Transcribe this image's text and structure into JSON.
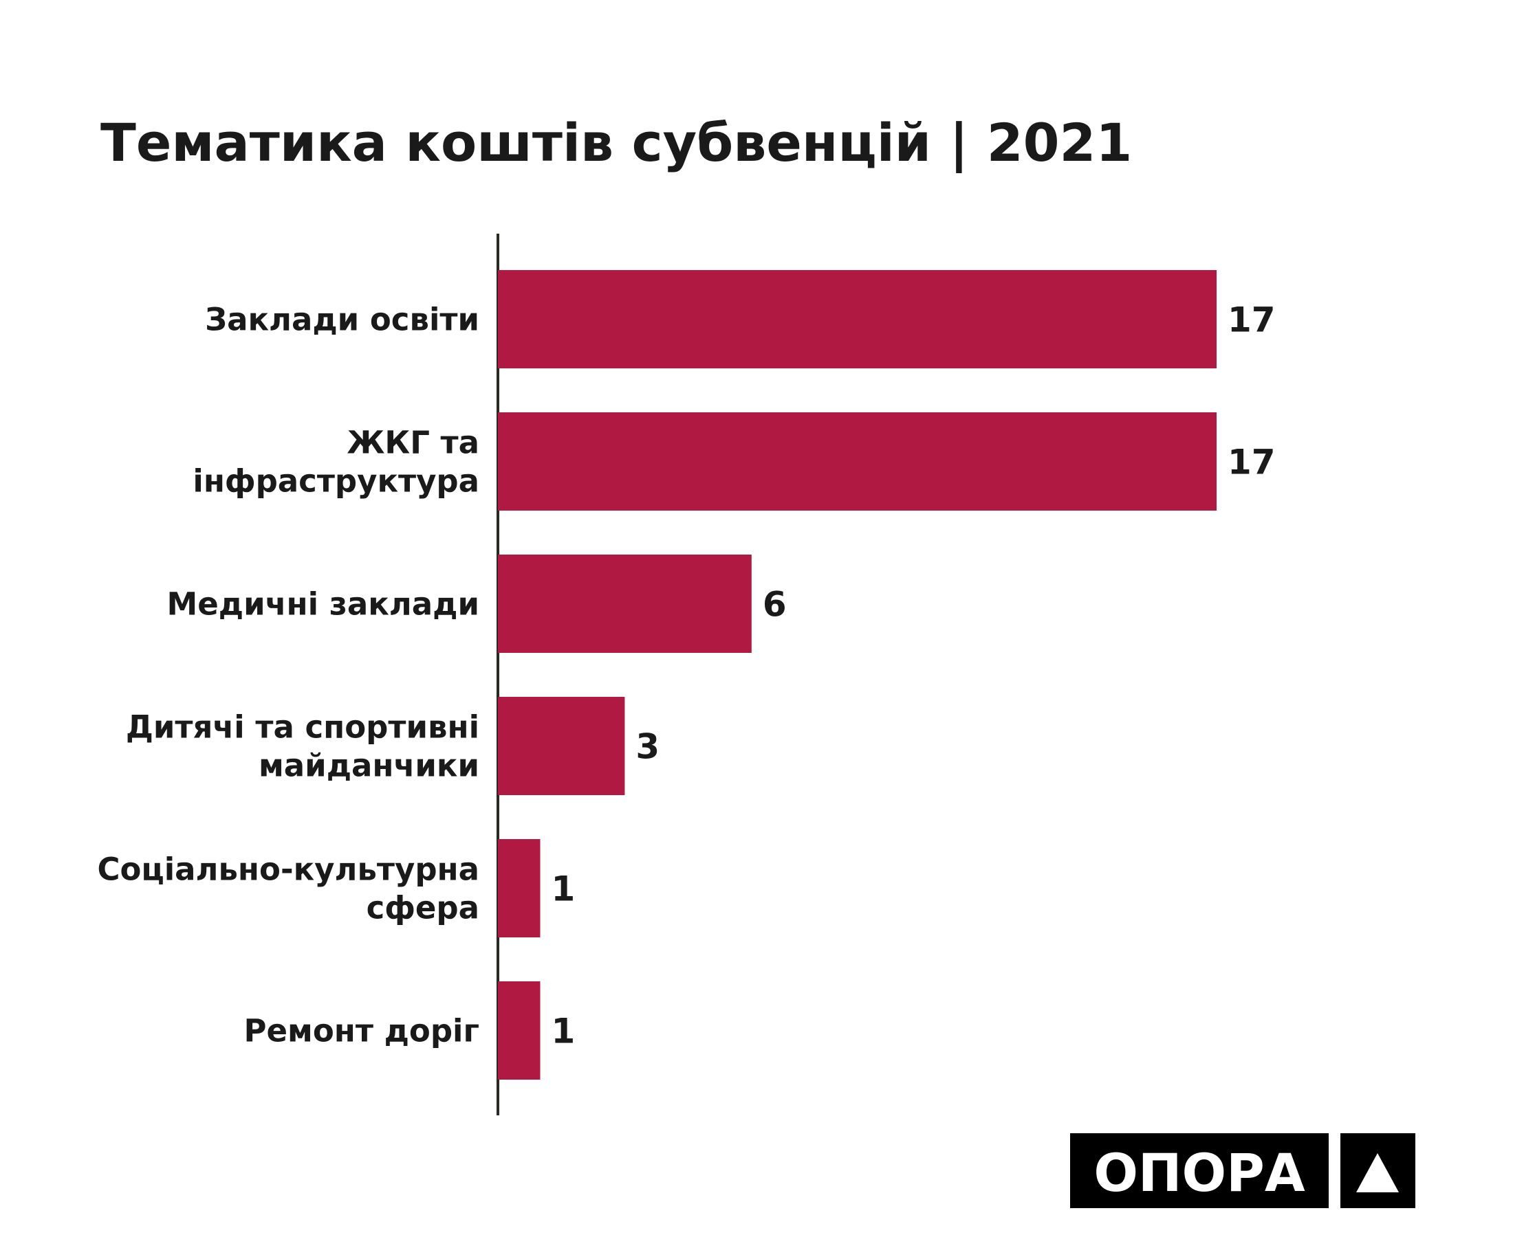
{
  "chart_data": {
    "type": "barh",
    "title": "Тематика коштів субвенцій | 2021",
    "categories": [
      "Заклади освіти",
      "ЖКГ та\nінфраструктура",
      "Медичні заклади",
      "Дитячі та спортивні\nмайданчики",
      "Соціально-культурна\nсфера",
      "Ремонт доріг"
    ],
    "values": [
      17,
      17,
      6,
      3,
      1,
      1
    ],
    "color": "#b01a42",
    "xlim": [
      0,
      17
    ]
  },
  "logo": "ОПОРА"
}
